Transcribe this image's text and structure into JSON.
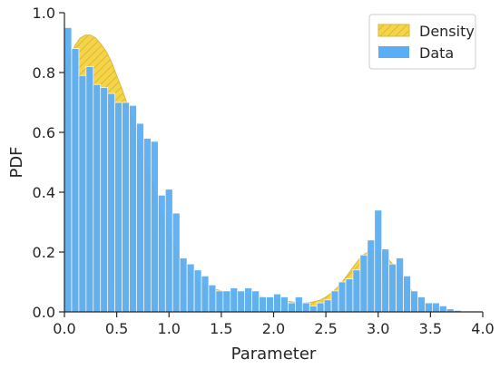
{
  "chart_data": {
    "type": "bar",
    "xlabel": "Parameter",
    "ylabel": "PDF",
    "xlim": [
      0.0,
      4.0
    ],
    "ylim": [
      0.0,
      1.0
    ],
    "xticks": [
      0.0,
      0.5,
      1.0,
      1.5,
      2.0,
      2.5,
      3.0,
      3.5,
      4.0
    ],
    "xtick_labels": [
      "0.0",
      "0.5",
      "1.0",
      "1.5",
      "2.0",
      "2.5",
      "3.0",
      "3.5",
      "4.0"
    ],
    "yticks": [
      0.0,
      0.2,
      0.4,
      0.6,
      0.8,
      1.0
    ],
    "ytick_labels": [
      "0.0",
      "0.2",
      "0.4",
      "0.6",
      "0.8",
      "1.0"
    ],
    "grid": false,
    "legend": {
      "placement": "top-right",
      "entries": [
        {
          "label": "Density",
          "style": "hatched",
          "color": "#f5d547",
          "edge": "#d9b93a"
        },
        {
          "label": "Data",
          "style": "solid",
          "color": "#5aaef5",
          "edge": "#ffffff"
        }
      ]
    },
    "series": [
      {
        "name": "Data",
        "kind": "histogram",
        "bin_width": 0.0689,
        "color": "#5aaef5",
        "x": [
          0.0345,
          0.1034,
          0.1724,
          0.2414,
          0.3103,
          0.3793,
          0.4483,
          0.5172,
          0.5862,
          0.6552,
          0.7241,
          0.7931,
          0.8621,
          0.931,
          1.0,
          1.069,
          1.1379,
          1.2069,
          1.2759,
          1.3448,
          1.4138,
          1.4828,
          1.5517,
          1.6207,
          1.6897,
          1.7586,
          1.8276,
          1.8966,
          1.9655,
          2.0345,
          2.1034,
          2.1724,
          2.2414,
          2.3103,
          2.3793,
          2.4483,
          2.5172,
          2.5862,
          2.6552,
          2.7241,
          2.7931,
          2.8621,
          2.931,
          3.0,
          3.069,
          3.1379,
          3.2069,
          3.2759,
          3.3448,
          3.4138,
          3.4828,
          3.5517,
          3.6207,
          3.6897,
          3.7586
        ],
        "values": [
          0.95,
          0.88,
          0.79,
          0.82,
          0.76,
          0.75,
          0.73,
          0.7,
          0.7,
          0.69,
          0.63,
          0.58,
          0.57,
          0.39,
          0.41,
          0.33,
          0.18,
          0.16,
          0.14,
          0.12,
          0.09,
          0.07,
          0.07,
          0.08,
          0.07,
          0.08,
          0.07,
          0.05,
          0.05,
          0.06,
          0.05,
          0.03,
          0.05,
          0.03,
          0.02,
          0.03,
          0.04,
          0.07,
          0.1,
          0.11,
          0.14,
          0.19,
          0.24,
          0.34,
          0.21,
          0.16,
          0.18,
          0.12,
          0.07,
          0.05,
          0.03,
          0.03,
          0.02,
          0.01,
          0.005
        ]
      },
      {
        "name": "Density",
        "kind": "kde-area",
        "color": "#f5d547",
        "x": [
          0.0,
          0.05,
          0.1,
          0.15,
          0.2,
          0.25,
          0.3,
          0.35,
          0.4,
          0.45,
          0.5,
          0.55,
          0.6,
          0.65,
          0.7,
          0.75,
          0.8,
          0.85,
          0.9,
          0.95,
          1.0,
          1.05,
          1.1,
          1.15,
          1.2,
          1.25,
          1.3,
          1.35,
          1.4,
          1.45,
          1.5,
          1.55,
          1.6,
          1.65,
          1.7,
          1.75,
          1.8,
          1.85,
          1.9,
          1.95,
          2.0,
          2.05,
          2.1,
          2.15,
          2.2,
          2.25,
          2.3,
          2.35,
          2.4,
          2.45,
          2.5,
          2.55,
          2.6,
          2.65,
          2.7,
          2.75,
          2.8,
          2.85,
          2.9,
          2.95,
          3.0,
          3.05,
          3.1,
          3.15,
          3.2,
          3.25,
          3.3,
          3.35,
          3.4,
          3.45,
          3.5,
          3.55,
          3.6,
          3.65,
          3.7,
          3.75,
          3.8
        ],
        "values": [
          0.8,
          0.85,
          0.89,
          0.915,
          0.925,
          0.925,
          0.915,
          0.895,
          0.87,
          0.835,
          0.79,
          0.745,
          0.695,
          0.64,
          0.585,
          0.53,
          0.47,
          0.415,
          0.36,
          0.31,
          0.26,
          0.22,
          0.185,
          0.155,
          0.13,
          0.11,
          0.095,
          0.085,
          0.08,
          0.075,
          0.07,
          0.068,
          0.065,
          0.063,
          0.06,
          0.058,
          0.055,
          0.052,
          0.05,
          0.048,
          0.045,
          0.042,
          0.038,
          0.035,
          0.032,
          0.03,
          0.03,
          0.032,
          0.035,
          0.04,
          0.05,
          0.062,
          0.078,
          0.098,
          0.12,
          0.145,
          0.168,
          0.188,
          0.2,
          0.205,
          0.2,
          0.19,
          0.175,
          0.155,
          0.13,
          0.105,
          0.08,
          0.058,
          0.04,
          0.026,
          0.016,
          0.009,
          0.005,
          0.003,
          0.002,
          0.001,
          0.0
        ]
      }
    ]
  }
}
